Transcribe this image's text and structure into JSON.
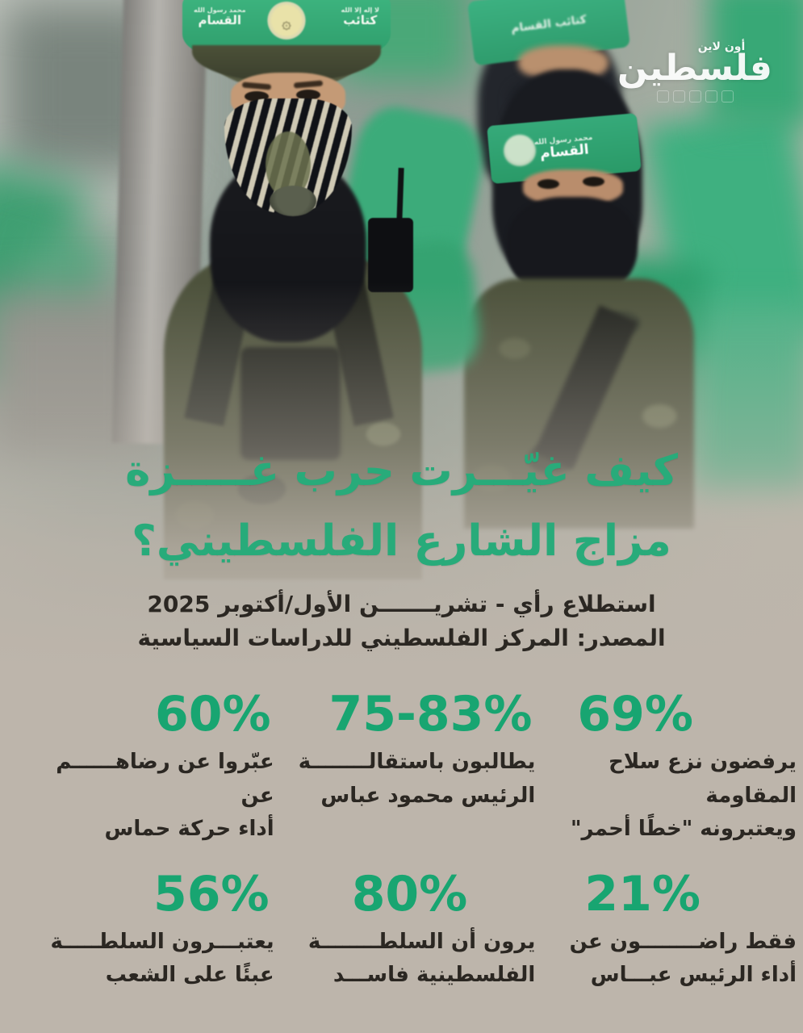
{
  "logo": {
    "tagline": "أون لاين",
    "name": "فلسطين"
  },
  "title": {
    "line1": "كيف غيّـــرت حرب غـــــزة",
    "line2": "مزاج الشارع الفلسطيني؟"
  },
  "subtitle": "استطلاع رأي - تشريـــــــن الأول/أكتوبر 2025",
  "source": "المصدر: المركز الفلسطيني للدراسات السياسية",
  "stats": [
    {
      "value": "69%",
      "label": "يرفضون نزع سلاح المقاومة\nويعتبرونه \"خطًا أحمر\""
    },
    {
      "value": "75-83%",
      "label": "يطالبون باستقالــــــــة\nالرئيس محمود عباس"
    },
    {
      "value": "60%",
      "label": "عبّروا عن رضاهــــــم عن\nأداء حركة حماس"
    },
    {
      "value": "21%",
      "label": "فقط راضــــــــون عن\nأداء الرئيس عبـــاس"
    },
    {
      "value": "80%",
      "label": "يرون أن السلطــــــــة\nالفلسطينية فاســـد"
    },
    {
      "value": "56%",
      "label": "يعتبـــرون السلطـــــة\nعبئًا على الشعب"
    }
  ],
  "photo": {
    "helmet_band": {
      "right_top": "لا إله إلا الله",
      "right": "كتائب",
      "left_top": "محمد رسول الله",
      "left": "القسام"
    },
    "fighter2_band": {
      "top": "محمد رسول الله",
      "main": "القسام"
    },
    "fighter3_band": {
      "main": "كتائب القسام"
    }
  },
  "colors": {
    "accent_green": "#18a571",
    "title_green": "#28ab7a",
    "background": "#bdb5ab",
    "text_dark": "#2b2722",
    "flag_green": "#3fae7e"
  }
}
